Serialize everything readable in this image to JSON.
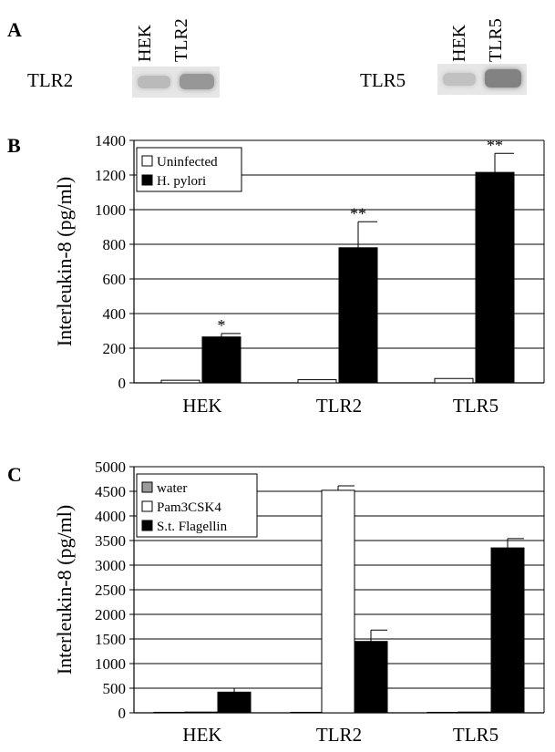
{
  "panels": {
    "a": "A",
    "b": "B",
    "c": "C"
  },
  "blots": [
    {
      "protein": "TLR2",
      "lanes": [
        "HEK",
        "TLR2"
      ],
      "band_intensity": [
        0.35,
        0.6
      ]
    },
    {
      "protein": "TLR5",
      "lanes": [
        "HEK",
        "TLR5"
      ],
      "band_intensity": [
        0.3,
        0.75
      ]
    }
  ],
  "colors": {
    "black_series": "#000000",
    "white_series": "#ffffff",
    "gray_series": "#9a9a9a",
    "gridline": "#000000"
  },
  "chart_data": [
    {
      "type": "bar",
      "panel": "B",
      "categories": [
        "HEK",
        "TLR2",
        "TLR5"
      ],
      "ylabel": "Interleukin-8 (pg/ml)",
      "ylim": [
        0,
        1400
      ],
      "yticks": [
        0,
        200,
        400,
        600,
        800,
        1000,
        1200,
        1400
      ],
      "grid": true,
      "legend_position": "top-left",
      "series": [
        {
          "name": "Uninfected",
          "fill": "white",
          "values": [
            15,
            18,
            25
          ],
          "errors": [
            0,
            0,
            0
          ]
        },
        {
          "name": "H. pylori",
          "fill": "black",
          "values": [
            265,
            780,
            1215
          ],
          "errors": [
            20,
            150,
            110
          ]
        }
      ],
      "annotations": [
        "*",
        "**",
        "**"
      ]
    },
    {
      "type": "bar",
      "panel": "C",
      "categories": [
        "HEK",
        "TLR2",
        "TLR5"
      ],
      "ylabel": "Interleukin-8 (pg/ml)",
      "ylim": [
        0,
        5000
      ],
      "yticks": [
        0,
        500,
        1000,
        1500,
        2000,
        2500,
        3000,
        3500,
        4000,
        4500,
        5000
      ],
      "grid": true,
      "legend_position": "top-left",
      "series": [
        {
          "name": "water",
          "fill": "gray",
          "values": [
            10,
            10,
            10
          ],
          "errors": [
            0,
            0,
            0
          ]
        },
        {
          "name": "Pam3CSK4",
          "fill": "white",
          "values": [
            15,
            4520,
            15
          ],
          "errors": [
            0,
            90,
            0
          ]
        },
        {
          "name": "S.t. Flagellin",
          "fill": "black",
          "values": [
            420,
            1450,
            3350
          ],
          "errors": [
            80,
            230,
            190
          ]
        }
      ]
    }
  ]
}
